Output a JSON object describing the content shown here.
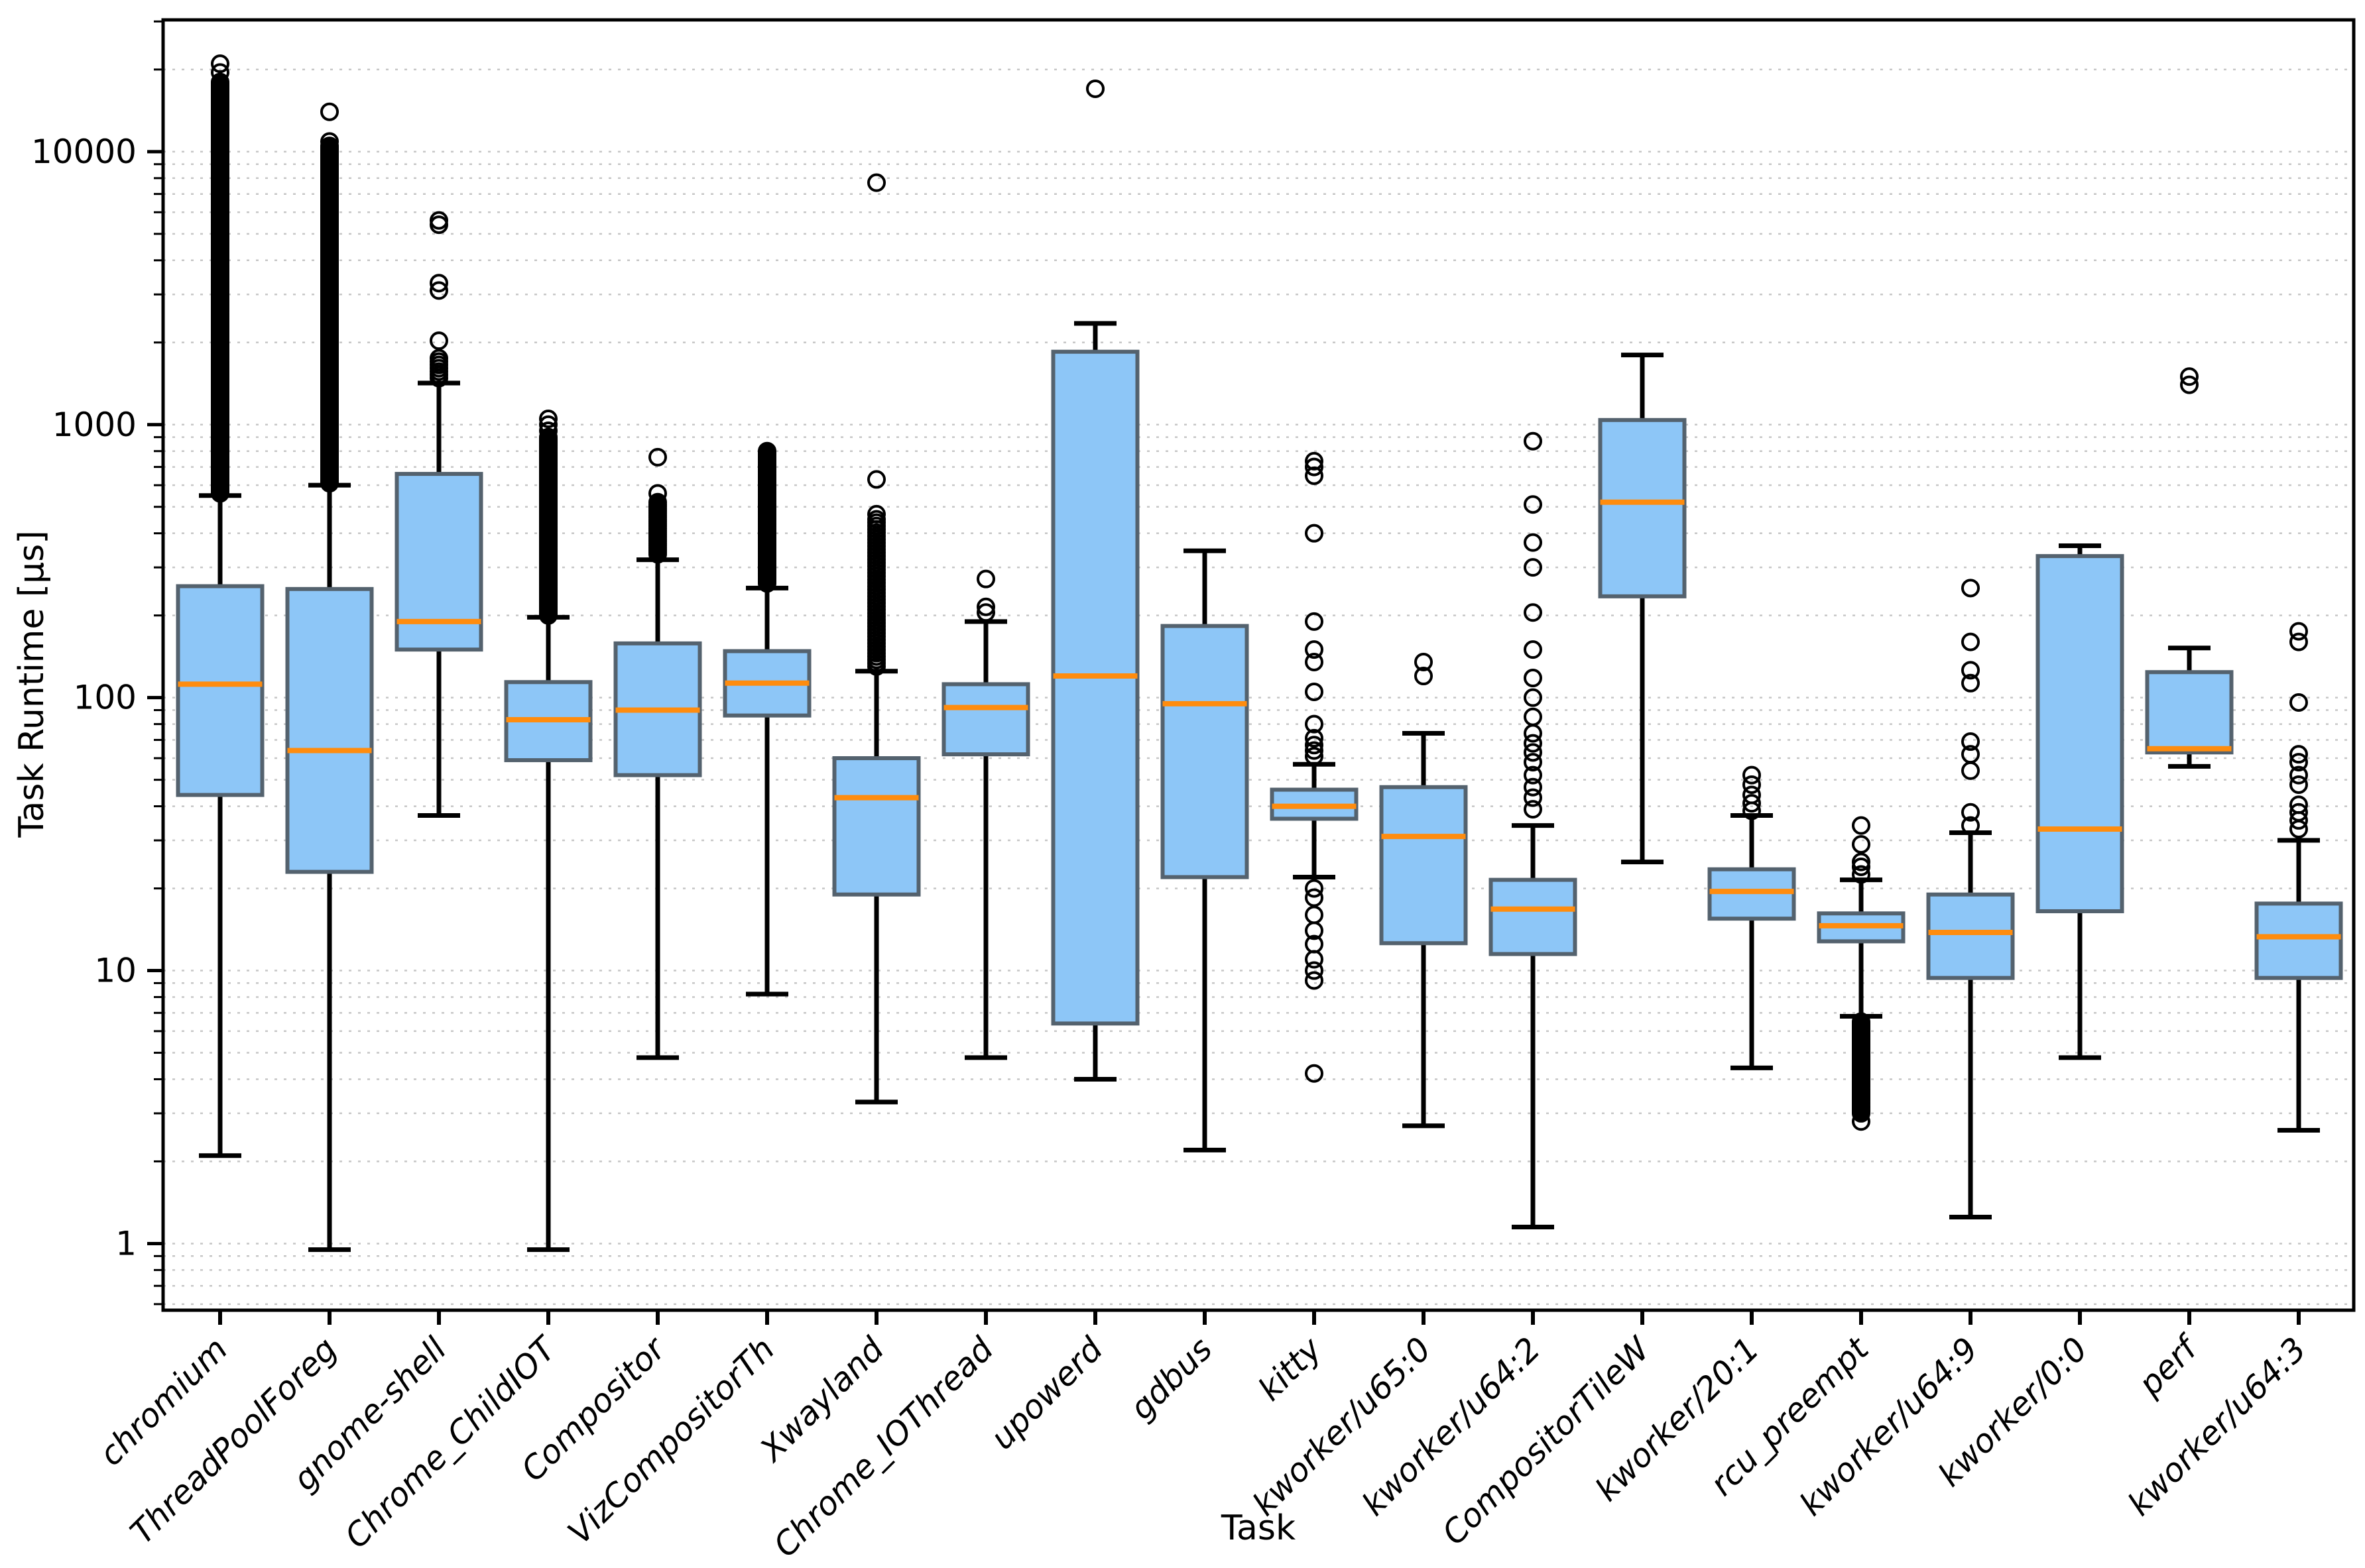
{
  "figure": {
    "background": "#ffffff",
    "text_color": "#000000"
  },
  "chart_data": {
    "type": "boxplot",
    "title": "",
    "xlabel": "Task",
    "ylabel": "Task Runtime [µs]",
    "y_scale": "log",
    "ylim": [
      0.57,
      30400
    ],
    "yticks": [
      1,
      10,
      100,
      1000,
      10000
    ],
    "ytick_labels": [
      "1",
      "10",
      "100",
      "1000",
      "10000"
    ],
    "grid": "horizontal dotted gridlines at every log tick (major and minor)",
    "legend": "none",
    "colors": {
      "box_fill": "#8dc6f7",
      "box_edge": "#54626e",
      "median": "#ff8c0e",
      "whisker": "#000000",
      "flier_edge": "#000000",
      "gridline": "#c6c6c6",
      "spine": "#000000"
    },
    "categories": [
      "chromium",
      "ThreadPoolForeg",
      "gnome-shell",
      "Chrome_ChildIOT",
      "Compositor",
      "VizCompositorTh",
      "Xwayland",
      "Chrome_IOThread",
      "upowerd",
      "gdbus",
      "kitty",
      "kworker/u65:0",
      "kworker/u64:2",
      "CompositorTileW",
      "kworker/20:1",
      "rcu_preempt",
      "kworker/u64:9",
      "kworker/0:0",
      "perf",
      "kworker/u64:3"
    ],
    "boxes": [
      {
        "label": "chromium",
        "whislo": 2.1,
        "q1": 44,
        "med": 112,
        "q3": 256,
        "whishi": 550,
        "fliers": [
          19500,
          21000
        ],
        "flier_clusters": [
          {
            "min": 560,
            "max": 18000,
            "count": 320
          }
        ]
      },
      {
        "label": "ThreadPoolForeg",
        "whislo": 0.95,
        "q1": 23,
        "med": 64,
        "q3": 250,
        "whishi": 600,
        "fliers": [
          10900,
          14000
        ],
        "flier_clusters": [
          {
            "min": 610,
            "max": 10500,
            "count": 280
          }
        ]
      },
      {
        "label": "gnome-shell",
        "whislo": 37,
        "q1": 150,
        "med": 190,
        "q3": 660,
        "whishi": 1420,
        "fliers": [
          2030,
          3100,
          3300,
          5400,
          5600
        ],
        "flier_clusters": [
          {
            "min": 1480,
            "max": 1750,
            "count": 7
          }
        ]
      },
      {
        "label": "Chrome_ChildIOT",
        "whislo": 0.95,
        "q1": 59,
        "med": 83,
        "q3": 114,
        "whishi": 197,
        "fliers": [
          950,
          1000,
          1050
        ],
        "flier_clusters": [
          {
            "min": 200,
            "max": 900,
            "count": 150
          }
        ]
      },
      {
        "label": "Compositor",
        "whislo": 4.8,
        "q1": 52,
        "med": 90,
        "q3": 158,
        "whishi": 320,
        "fliers": [
          560,
          760
        ],
        "flier_clusters": [
          {
            "min": 335,
            "max": 520,
            "count": 25
          }
        ]
      },
      {
        "label": "VizCompositorTh",
        "whislo": 8.2,
        "q1": 86,
        "med": 113,
        "q3": 148,
        "whishi": 252,
        "fliers": [],
        "flier_clusters": [
          {
            "min": 262,
            "max": 800,
            "count": 80
          }
        ]
      },
      {
        "label": "Xwayland",
        "whislo": 3.3,
        "q1": 19,
        "med": 43,
        "q3": 60,
        "whishi": 125,
        "fliers": [
          470,
          630,
          7700
        ],
        "flier_clusters": [
          {
            "min": 130,
            "max": 450,
            "count": 45
          }
        ]
      },
      {
        "label": "Chrome_IOThread",
        "whislo": 4.8,
        "q1": 62,
        "med": 92,
        "q3": 112,
        "whishi": 190,
        "fliers": [
          205,
          215,
          272
        ],
        "flier_clusters": []
      },
      {
        "label": "upowerd",
        "whislo": 4.0,
        "q1": 6.4,
        "med": 120,
        "q3": 1850,
        "whishi": 2350,
        "fliers": [
          17000
        ],
        "flier_clusters": []
      },
      {
        "label": "gdbus",
        "whislo": 2.2,
        "q1": 22,
        "med": 95,
        "q3": 183,
        "whishi": 345,
        "fliers": [],
        "flier_clusters": []
      },
      {
        "label": "kitty",
        "whislo": 22,
        "q1": 36,
        "med": 40,
        "q3": 46,
        "whishi": 57,
        "fliers": [
          4.2,
          9.2,
          10,
          11,
          12.5,
          14,
          16,
          18.5,
          20,
          61,
          64,
          67,
          71,
          80,
          105,
          135,
          150,
          190,
          400,
          650,
          700,
          735
        ],
        "flier_clusters": []
      },
      {
        "label": "kworker/u65:0",
        "whislo": 2.7,
        "q1": 12.6,
        "med": 31,
        "q3": 47,
        "whishi": 74,
        "fliers": [
          120,
          135
        ],
        "flier_clusters": []
      },
      {
        "label": "kworker/u64:2",
        "whislo": 1.15,
        "q1": 11.5,
        "med": 16.8,
        "q3": 21.5,
        "whishi": 34,
        "fliers": [
          39,
          43,
          47,
          52,
          58,
          63,
          68,
          74,
          85,
          100,
          118,
          150,
          205,
          300,
          370,
          510,
          870
        ],
        "flier_clusters": []
      },
      {
        "label": "CompositorTileW",
        "whislo": 25,
        "q1": 235,
        "med": 520,
        "q3": 1040,
        "whishi": 1800,
        "fliers": [],
        "flier_clusters": []
      },
      {
        "label": "kworker/20:1",
        "whislo": 4.4,
        "q1": 15.5,
        "med": 19.5,
        "q3": 23.5,
        "whishi": 37,
        "fliers": [
          38.5,
          41,
          44,
          48,
          52
        ],
        "flier_clusters": []
      },
      {
        "label": "rcu_preempt",
        "whislo": 6.8,
        "q1": 12.8,
        "med": 14.6,
        "q3": 16.2,
        "whishi": 21.5,
        "fliers": [
          22.5,
          24,
          25,
          29,
          34,
          2.8
        ],
        "flier_clusters": [
          {
            "min": 3.0,
            "max": 6.5,
            "count": 70
          }
        ]
      },
      {
        "label": "kworker/u64:9",
        "whislo": 1.25,
        "q1": 9.4,
        "med": 13.8,
        "q3": 19,
        "whishi": 32,
        "fliers": [
          34,
          38,
          54,
          62,
          69,
          113,
          126,
          160,
          252
        ],
        "flier_clusters": []
      },
      {
        "label": "kworker/0:0",
        "whislo": 4.8,
        "q1": 16.5,
        "med": 33,
        "q3": 330,
        "whishi": 360,
        "fliers": [],
        "flier_clusters": []
      },
      {
        "label": "perf",
        "whislo": 56,
        "q1": 63,
        "med": 65,
        "q3": 124,
        "whishi": 152,
        "fliers": [
          1400,
          1500
        ],
        "flier_clusters": []
      },
      {
        "label": "kworker/u64:3",
        "whislo": 2.6,
        "q1": 9.4,
        "med": 13.3,
        "q3": 17.6,
        "whishi": 30,
        "fliers": [
          33,
          35.5,
          38,
          40.5,
          48,
          52,
          58,
          62,
          96,
          160,
          175
        ],
        "flier_clusters": []
      }
    ]
  }
}
